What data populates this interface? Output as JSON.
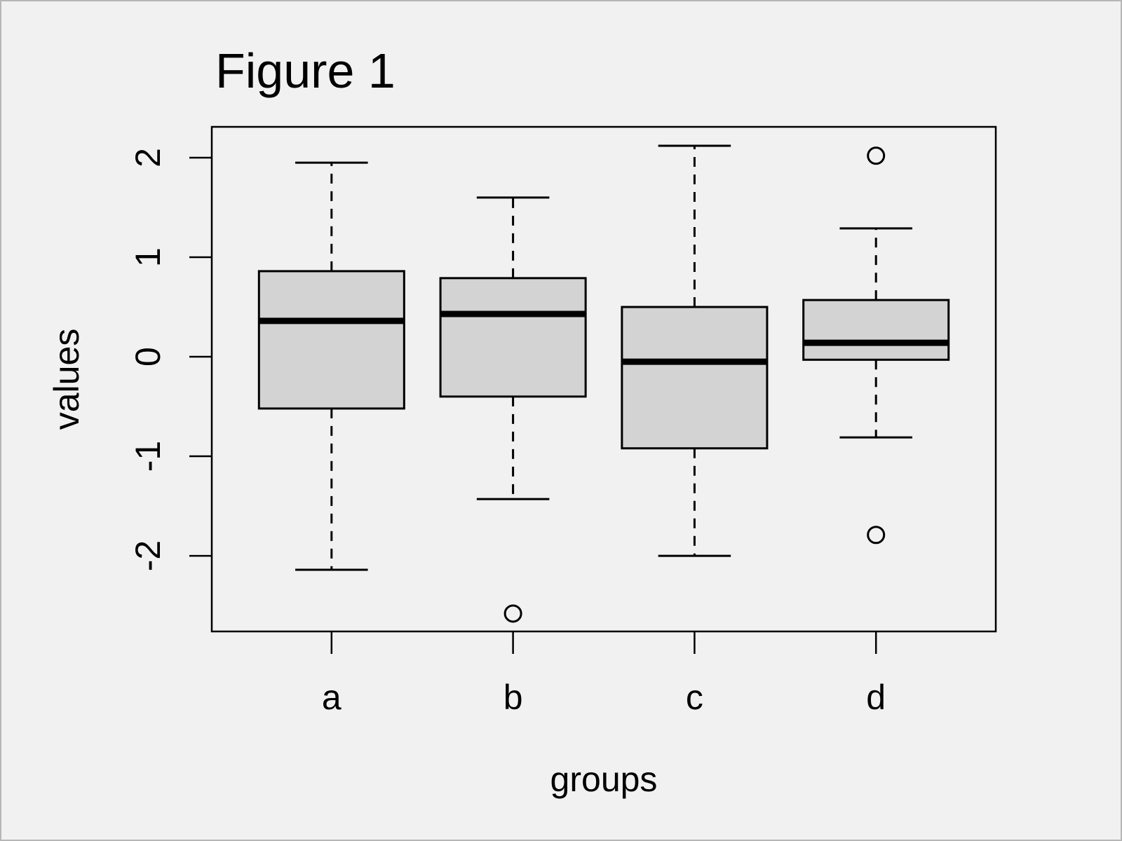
{
  "figure": {
    "title": "Figure 1",
    "xlabel": "groups",
    "ylabel": "values"
  },
  "chart_data": {
    "type": "boxplot",
    "title": "Figure 1",
    "xlabel": "groups",
    "ylabel": "values",
    "categories": [
      "a",
      "b",
      "c",
      "d"
    ],
    "series": [
      {
        "name": "a",
        "whisker_low": -2.14,
        "q1": -0.52,
        "median": 0.36,
        "q3": 0.86,
        "whisker_high": 1.95,
        "outliers": []
      },
      {
        "name": "b",
        "whisker_low": -1.43,
        "q1": -0.4,
        "median": 0.43,
        "q3": 0.79,
        "whisker_high": 1.6,
        "outliers": [
          -2.58
        ]
      },
      {
        "name": "c",
        "whisker_low": -2.0,
        "q1": -0.92,
        "median": -0.05,
        "q3": 0.5,
        "whisker_high": 2.12,
        "outliers": []
      },
      {
        "name": "d",
        "whisker_low": -0.81,
        "q1": -0.03,
        "median": 0.14,
        "q3": 0.57,
        "whisker_high": 1.29,
        "outliers": [
          2.02,
          -1.79
        ]
      }
    ],
    "y_ticks": [
      -2,
      -1,
      0,
      1,
      2
    ],
    "ylim": [
      -2.76,
      2.31
    ],
    "grid": false,
    "legend": "none",
    "colors": {
      "box_fill": "#d3d3d3",
      "line": "#000000",
      "background": "#f1f1f2",
      "page_border": "#b6b6b6"
    }
  }
}
